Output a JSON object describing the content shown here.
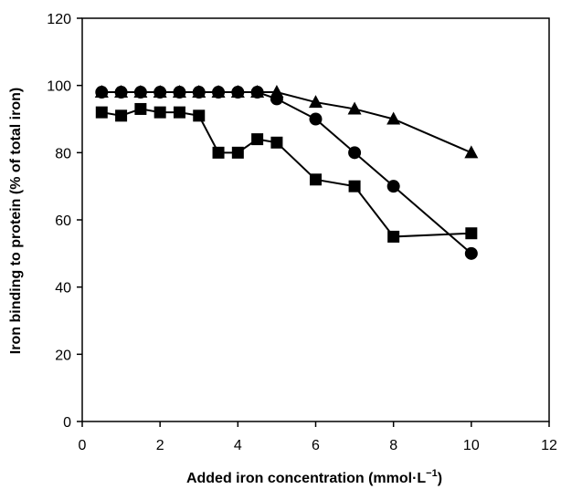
{
  "chart_data": {
    "type": "line",
    "title": "",
    "xlabel": "Added iron concentration (mmol·L",
    "xlabel_sup": "−1",
    "xlabel_close": ")",
    "ylabel": "Iron binding to protein (% of total iron)",
    "xlim": [
      0,
      12
    ],
    "ylim": [
      0,
      120
    ],
    "xticks": [
      0,
      2,
      4,
      6,
      8,
      10,
      12
    ],
    "yticks": [
      0,
      20,
      40,
      60,
      80,
      100,
      120
    ],
    "grid": false,
    "legend": "none",
    "series": [
      {
        "marker": "triangle",
        "points": [
          [
            0.5,
            98
          ],
          [
            1,
            98
          ],
          [
            1.5,
            98
          ],
          [
            2,
            98
          ],
          [
            2.5,
            98
          ],
          [
            3,
            98
          ],
          [
            3.5,
            98
          ],
          [
            4,
            98
          ],
          [
            4.5,
            98
          ],
          [
            5,
            98
          ],
          [
            6,
            95
          ],
          [
            7,
            93
          ],
          [
            8,
            90
          ],
          [
            10,
            80
          ]
        ]
      },
      {
        "marker": "circle",
        "points": [
          [
            0.5,
            98
          ],
          [
            1,
            98
          ],
          [
            1.5,
            98
          ],
          [
            2,
            98
          ],
          [
            2.5,
            98
          ],
          [
            3,
            98
          ],
          [
            3.5,
            98
          ],
          [
            4,
            98
          ],
          [
            4.5,
            98
          ],
          [
            5,
            96
          ],
          [
            6,
            90
          ],
          [
            7,
            80
          ],
          [
            8,
            70
          ],
          [
            10,
            50
          ]
        ]
      },
      {
        "marker": "square",
        "points": [
          [
            0.5,
            92
          ],
          [
            1,
            91
          ],
          [
            1.5,
            93
          ],
          [
            2,
            92
          ],
          [
            2.5,
            92
          ],
          [
            3,
            91
          ],
          [
            3.5,
            80
          ],
          [
            4,
            80
          ],
          [
            4.5,
            84
          ],
          [
            5,
            83
          ],
          [
            6,
            72
          ],
          [
            7,
            70
          ],
          [
            8,
            55
          ],
          [
            10,
            56
          ]
        ]
      }
    ],
    "colors": {
      "line": "#000000",
      "marker": "#000000",
      "axis": "#000000"
    }
  }
}
